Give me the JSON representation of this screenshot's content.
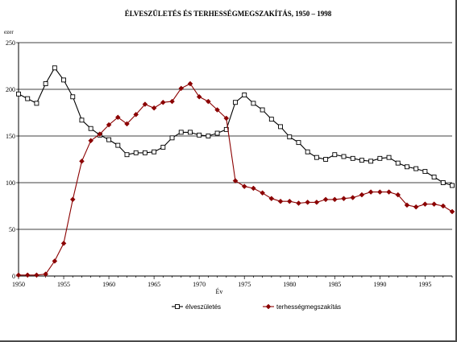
{
  "chart_data": {
    "type": "line",
    "title": "ÉLVESZÜLETÉS ÉS TERHESSÉGMEGSZAKÍTÁS, 1950 – 1998",
    "ylabel": "ezer",
    "xlabel": "Év",
    "xlim": [
      1950,
      1998
    ],
    "ylim": [
      0,
      250
    ],
    "x_ticks": [
      "1950",
      "1955",
      "1960",
      "1965",
      "1970",
      "1975",
      "1980",
      "1985",
      "1990",
      "1995"
    ],
    "y_ticks": [
      "0",
      "50",
      "100",
      "150",
      "200",
      "250"
    ],
    "grid": "horizontal",
    "legend_position": "bottom",
    "x": [
      1950,
      1951,
      1952,
      1953,
      1954,
      1955,
      1956,
      1957,
      1958,
      1959,
      1960,
      1961,
      1962,
      1963,
      1964,
      1965,
      1966,
      1967,
      1968,
      1969,
      1970,
      1971,
      1972,
      1973,
      1974,
      1975,
      1976,
      1977,
      1978,
      1979,
      1980,
      1981,
      1982,
      1983,
      1984,
      1985,
      1986,
      1987,
      1988,
      1989,
      1990,
      1991,
      1992,
      1993,
      1994,
      1995,
      1996,
      1997,
      1998
    ],
    "series": [
      {
        "name": "élveszületés",
        "color": "#000000",
        "marker": "open-square",
        "values": [
          195,
          190,
          185,
          206,
          223,
          210,
          192,
          167,
          158,
          151,
          146,
          140,
          130,
          132,
          132,
          133,
          138,
          148,
          154,
          154,
          151,
          150,
          153,
          157,
          186,
          194,
          185,
          178,
          168,
          160,
          149,
          143,
          133,
          127,
          125,
          130,
          128,
          126,
          124,
          123,
          126,
          127,
          121,
          117,
          115,
          112,
          106,
          100,
          97
        ]
      },
      {
        "name": "terhességmegszakítás",
        "color": "#8b0000",
        "marker": "filled-diamond",
        "values": [
          1,
          1,
          1,
          2,
          16,
          35,
          82,
          123,
          145,
          152,
          162,
          170,
          163,
          173,
          184,
          180,
          186,
          187,
          201,
          206,
          192,
          187,
          178,
          169,
          102,
          96,
          94,
          89,
          83,
          80,
          80,
          78,
          79,
          79,
          82,
          82,
          83,
          84,
          87,
          90,
          90,
          90,
          87,
          76,
          74,
          77,
          77,
          75,
          69
        ]
      }
    ]
  }
}
